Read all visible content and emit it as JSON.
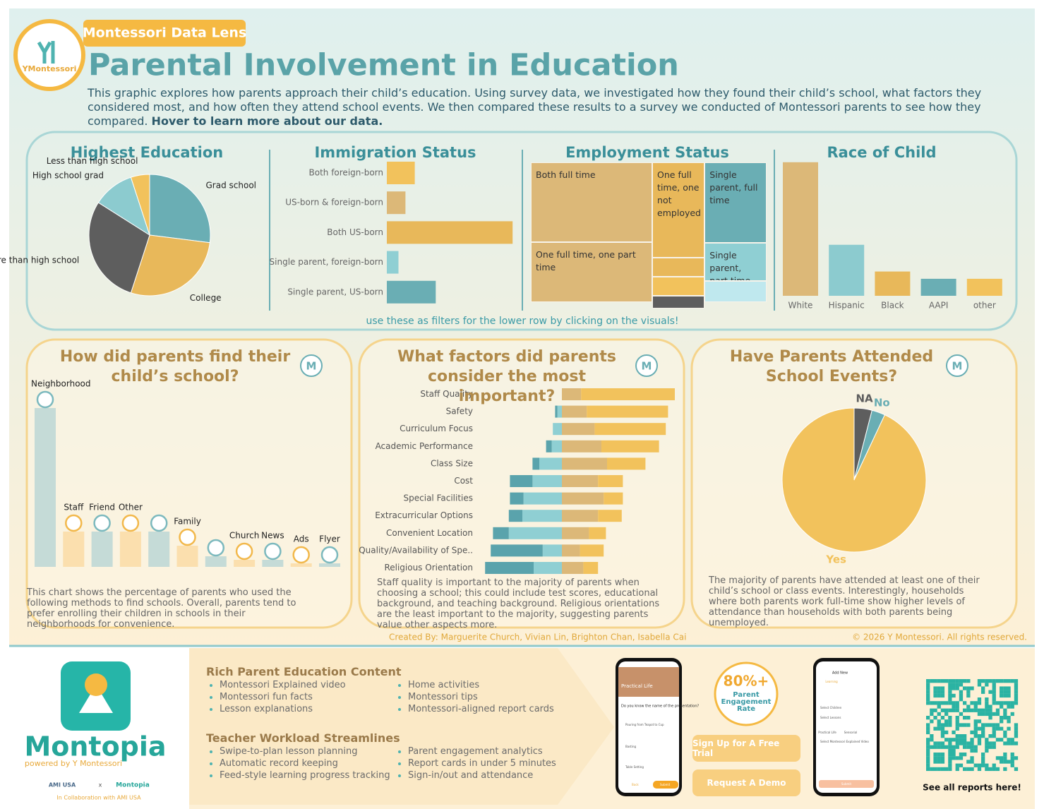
{
  "header": {
    "badge": "Montessori Data Lens",
    "logo": "YMontessori",
    "title": "Parental Involvement in Education",
    "description": "This graphic explores how parents approach their child’s education. Using survey data, we investigated how they found their child’s school, what factors they considered most, and how often they attend school events. We then compared these results to a survey we conducted of Montessori parents to see how they compared.",
    "description_bold": "Hover to learn more about our data."
  },
  "filter_hint": "use these as filters for the lower row by clicking on the visuals!",
  "chart_data": [
    {
      "type": "pie",
      "title": "Highest Education",
      "categories": [
        "Grad school",
        "College",
        "More than high school",
        "High school grad",
        "Less than high school"
      ],
      "values": [
        27,
        28,
        29,
        11,
        5
      ],
      "colors": [
        "#6aaeb4",
        "#e8b85a",
        "#5e5e5e",
        "#8ccbcf",
        "#f2c25c"
      ]
    },
    {
      "type": "hbar",
      "title": "Immigration Status",
      "categories": [
        "Both foreign-born",
        "US-born & foreign-born",
        "Both US-born",
        "Single parent, foreign-born",
        "Single parent, US-born"
      ],
      "values": [
        12,
        8,
        54,
        5,
        21
      ],
      "colors": [
        "#f2c25c",
        "#dcb878",
        "#e8b85a",
        "#8fcfd3",
        "#6aaeb4"
      ]
    },
    {
      "type": "treemap",
      "title": "Employment Status",
      "categories": [
        "Both full time",
        "One full time, one not employed",
        "Single parent, full time",
        "One full time, one part time",
        "Single parent, part time",
        null,
        null,
        null,
        null
      ],
      "values": [
        29,
        15,
        15,
        22,
        7,
        3,
        3,
        1,
        4
      ],
      "colors": [
        "#dcb878",
        "#e8b85a",
        "#6aaeb4",
        "#dcb878",
        "#8fcfd3",
        "#e8b85a",
        "#f2c25c",
        "#5e5e5e",
        "#bfe8ee"
      ]
    },
    {
      "type": "bar",
      "title": "Race of Child",
      "categories": [
        "White",
        "Hispanic",
        "Black",
        "AAPI",
        "other"
      ],
      "values": [
        55,
        21,
        10,
        7,
        7
      ],
      "colors": [
        "#dcb878",
        "#8ccbcf",
        "#e8b85a",
        "#6aaeb4",
        "#f2c25c"
      ]
    },
    {
      "type": "bar",
      "title": "How did parents find their child’s school?",
      "badge": "M",
      "categories": [
        "Neighborhood",
        "Staff",
        "Friend",
        "Other",
        null,
        "Family",
        null,
        "Church",
        "News",
        "Ads",
        "Flyer"
      ],
      "values": [
        45,
        10,
        10,
        10,
        10,
        6,
        3,
        2,
        2,
        1,
        1
      ],
      "colors": [
        "#c5dbd7",
        "#fbdfae",
        "#c5dbd7",
        "#fbdfae",
        "#c5dbd7",
        "#fbdfae",
        "#c5dbd7",
        "#fbdfae",
        "#c5dbd7",
        "#fbdfae",
        "#c5dbd7"
      ],
      "caption": "This chart shows the percentage of parents who used the following methods to find schools. Overall, parents tend to prefer enrolling their children in schools in their neighborhoods for convenience."
    },
    {
      "type": "diverging_bar",
      "title": "What factors did parents consider the most important?",
      "badge": "M",
      "categories": [
        "Staff Quality",
        "Safety",
        "Curriculum Focus",
        "Academic Performance",
        "Class Size",
        "Cost",
        "Special Facilities",
        "Extracurricular Options",
        "Convenient Location",
        "Quality/Availability of Spe..",
        "Religious Orientation"
      ],
      "series": [
        {
          "color": "#5aa3ac",
          "values": [
            0,
            2,
            0,
            5,
            6,
            20,
            12,
            12,
            14,
            46,
            43
          ]
        },
        {
          "color": "#8fcfd3",
          "values": [
            0,
            4,
            8,
            9,
            20,
            26,
            34,
            35,
            47,
            17,
            25
          ]
        },
        {
          "color": "#dcb878",
          "values": [
            17,
            22,
            29,
            35,
            40,
            32,
            37,
            32,
            24,
            16,
            19
          ]
        },
        {
          "color": "#f2c25c",
          "values": [
            83,
            72,
            63,
            51,
            34,
            22,
            17,
            21,
            15,
            21,
            13
          ]
        }
      ],
      "caption": "Staff quality is important to the majority of parents when choosing a school; this could include test scores, educational background, and teaching background. Religious orientations are the least important to the majority, suggesting parents value other aspects more."
    },
    {
      "type": "pie",
      "title": "Have Parents Attended School Events?",
      "badge": "M",
      "categories": [
        "NA",
        "No",
        "Yes"
      ],
      "values": [
        4,
        3,
        93
      ],
      "colors": [
        "#5e5e5e",
        "#6aaeb4",
        "#f2c25c"
      ],
      "caption": "The majority of parents have attended at least one of their child’s school or class events. Interestingly, households where both parents work full-time show higher levels of attendance than households with both parents being unemployed."
    }
  ],
  "credits": "Created By: Marguerite Church, Vivian Lin, Brighton Chan, Isabella Cai",
  "copyright": "© 2026 Y Montessori. All rights reserved.",
  "footer": {
    "app_name": "Montopia",
    "powered_by": "powered by Y Montessori",
    "partner": "AMI USA",
    "times": "x",
    "partner_app": "Montopia",
    "collaboration": "In Collaboration with AMI USA",
    "sections": [
      {
        "title": "Rich Parent Education Content",
        "columns": [
          [
            "Montessori Explained video",
            "Montessori fun facts",
            "Lesson explanations"
          ],
          [
            "Home activities",
            "Montessori tips",
            "Montessori-aligned report cards"
          ]
        ]
      },
      {
        "title": "Teacher Workload Streamlines",
        "columns": [
          [
            "Swipe-to-plan lesson planning",
            "Automatic record keeping",
            "Feed-style learning progress tracking"
          ],
          [
            "Parent engagement analytics",
            "Report cards in under 5 minutes",
            "Sign-in/out and attendance"
          ]
        ]
      }
    ],
    "stat": {
      "value": "80%+",
      "label": "Parent Engagement Rate"
    },
    "buttons": [
      "Sign Up for A Free Trial",
      "Request A Demo"
    ],
    "phone1": [
      "Practical Life",
      "Do you know the name of the presentation?",
      "Pouring from Teapot to Cup",
      "Basting",
      "Table Setting",
      "Back",
      "Submit"
    ],
    "phone2": [
      "Add New",
      "Learning",
      "Select Children",
      "Select Lessons",
      "Practical Life",
      "Sensorial",
      "Select Montessori Explained Video",
      "Submit"
    ],
    "qr_caption": "See all reports here!"
  }
}
